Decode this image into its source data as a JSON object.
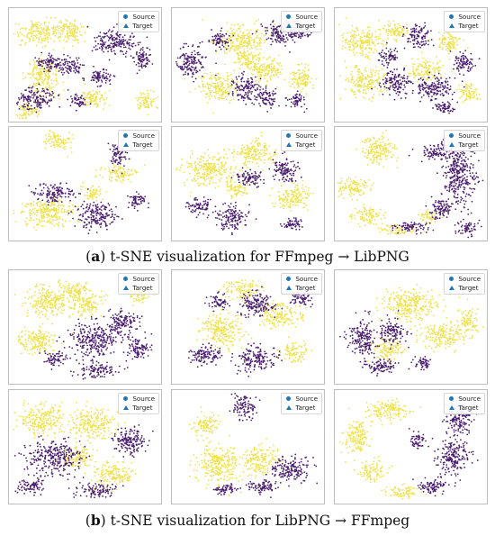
{
  "legend": {
    "source": "Source",
    "target": "Target"
  },
  "colors": {
    "source": "#efe24a",
    "target": "#4a1d6e",
    "marker": "#1f77b4"
  },
  "captions": [
    {
      "letter": "a",
      "text": " t-SNE visualization for FFmpeg → LibPNG"
    },
    {
      "letter": "b",
      "text": " t-SNE visualization for LibPNG → FFmpeg"
    }
  ],
  "chart_data": [
    {
      "type": "scatter",
      "group": "a",
      "panel": 1,
      "series": [
        {
          "name": "Source",
          "clusters": [
            [
              0.18,
              0.22,
              0.12,
              0.1
            ],
            [
              0.4,
              0.2,
              0.1,
              0.09
            ],
            [
              0.22,
              0.62,
              0.1,
              0.14
            ],
            [
              0.55,
              0.8,
              0.08,
              0.08
            ],
            [
              0.9,
              0.82,
              0.06,
              0.08
            ],
            [
              0.12,
              0.9,
              0.08,
              0.06
            ]
          ]
        },
        {
          "name": "Target",
          "clusters": [
            [
              0.7,
              0.3,
              0.13,
              0.11
            ],
            [
              0.28,
              0.48,
              0.1,
              0.07
            ],
            [
              0.42,
              0.52,
              0.06,
              0.06
            ],
            [
              0.18,
              0.8,
              0.12,
              0.09
            ],
            [
              0.6,
              0.6,
              0.08,
              0.07
            ],
            [
              0.45,
              0.82,
              0.05,
              0.05
            ],
            [
              0.88,
              0.45,
              0.05,
              0.1
            ]
          ]
        }
      ]
    },
    {
      "type": "scatter",
      "group": "a",
      "panel": 2,
      "series": [
        {
          "name": "Source",
          "clusters": [
            [
              0.45,
              0.28,
              0.14,
              0.12
            ],
            [
              0.3,
              0.7,
              0.12,
              0.11
            ],
            [
              0.62,
              0.55,
              0.11,
              0.1
            ],
            [
              0.85,
              0.62,
              0.07,
              0.1
            ],
            [
              0.5,
              0.45,
              0.08,
              0.07
            ]
          ]
        },
        {
          "name": "Target",
          "clusters": [
            [
              0.12,
              0.48,
              0.09,
              0.12
            ],
            [
              0.72,
              0.22,
              0.11,
              0.09
            ],
            [
              0.48,
              0.7,
              0.08,
              0.11
            ],
            [
              0.85,
              0.2,
              0.06,
              0.05
            ],
            [
              0.32,
              0.28,
              0.06,
              0.07
            ],
            [
              0.62,
              0.8,
              0.06,
              0.08
            ],
            [
              0.82,
              0.82,
              0.05,
              0.06
            ]
          ]
        }
      ]
    },
    {
      "type": "scatter",
      "group": "a",
      "panel": 3,
      "series": [
        {
          "name": "Source",
          "clusters": [
            [
              0.18,
              0.3,
              0.13,
              0.11
            ],
            [
              0.2,
              0.65,
              0.12,
              0.12
            ],
            [
              0.6,
              0.55,
              0.1,
              0.09
            ],
            [
              0.75,
              0.3,
              0.08,
              0.08
            ],
            [
              0.4,
              0.2,
              0.08,
              0.07
            ],
            [
              0.88,
              0.75,
              0.06,
              0.07
            ]
          ]
        },
        {
          "name": "Target",
          "clusters": [
            [
              0.55,
              0.25,
              0.08,
              0.09
            ],
            [
              0.65,
              0.7,
              0.12,
              0.1
            ],
            [
              0.4,
              0.65,
              0.09,
              0.1
            ],
            [
              0.85,
              0.48,
              0.07,
              0.08
            ],
            [
              0.72,
              0.88,
              0.06,
              0.05
            ],
            [
              0.35,
              0.42,
              0.06,
              0.06
            ]
          ]
        }
      ]
    },
    {
      "type": "scatter",
      "group": "b",
      "panel": 1,
      "series": [
        {
          "name": "Source",
          "clusters": [
            [
              0.25,
              0.28,
              0.14,
              0.12
            ],
            [
              0.18,
              0.62,
              0.12,
              0.1
            ],
            [
              0.52,
              0.3,
              0.1,
              0.09
            ],
            [
              0.42,
              0.18,
              0.1,
              0.07
            ],
            [
              0.85,
              0.22,
              0.06,
              0.06
            ]
          ]
        },
        {
          "name": "Target",
          "clusters": [
            [
              0.55,
              0.62,
              0.15,
              0.14
            ],
            [
              0.75,
              0.45,
              0.09,
              0.1
            ],
            [
              0.58,
              0.88,
              0.12,
              0.06
            ],
            [
              0.3,
              0.78,
              0.07,
              0.06
            ],
            [
              0.85,
              0.7,
              0.07,
              0.09
            ]
          ]
        }
      ]
    },
    {
      "type": "scatter",
      "group": "b",
      "panel": 2,
      "series": [
        {
          "name": "Source",
          "clusters": [
            [
              0.32,
              0.52,
              0.12,
              0.14
            ],
            [
              0.72,
              0.4,
              0.12,
              0.1
            ],
            [
              0.45,
              0.18,
              0.1,
              0.08
            ],
            [
              0.8,
              0.72,
              0.08,
              0.08
            ]
          ]
        },
        {
          "name": "Target",
          "clusters": [
            [
              0.55,
              0.78,
              0.12,
              0.1
            ],
            [
              0.22,
              0.75,
              0.1,
              0.08
            ],
            [
              0.55,
              0.3,
              0.11,
              0.1
            ],
            [
              0.85,
              0.25,
              0.07,
              0.06
            ],
            [
              0.3,
              0.28,
              0.06,
              0.06
            ]
          ]
        }
      ]
    },
    {
      "type": "scatter",
      "group": "b",
      "panel": 3,
      "series": [
        {
          "name": "Source",
          "clusters": [
            [
              0.5,
              0.3,
              0.18,
              0.12
            ],
            [
              0.7,
              0.58,
              0.14,
              0.1
            ],
            [
              0.35,
              0.7,
              0.08,
              0.1
            ],
            [
              0.88,
              0.45,
              0.06,
              0.1
            ]
          ]
        },
        {
          "name": "Target",
          "clusters": [
            [
              0.18,
              0.6,
              0.09,
              0.15
            ],
            [
              0.38,
              0.55,
              0.08,
              0.1
            ],
            [
              0.3,
              0.85,
              0.1,
              0.06
            ],
            [
              0.58,
              0.82,
              0.06,
              0.05
            ]
          ]
        }
      ]
    },
    {
      "type": "scatter",
      "group": "a",
      "panel": 4,
      "series": [
        {
          "name": "Source",
          "clusters": [
            [
              0.25,
              0.75,
              0.16,
              0.12
            ],
            [
              0.32,
              0.12,
              0.08,
              0.07
            ],
            [
              0.72,
              0.4,
              0.1,
              0.07
            ],
            [
              0.55,
              0.58,
              0.06,
              0.06
            ]
          ]
        },
        {
          "name": "Target",
          "clusters": [
            [
              0.58,
              0.78,
              0.13,
              0.1
            ],
            [
              0.72,
              0.24,
              0.05,
              0.11
            ],
            [
              0.3,
              0.58,
              0.12,
              0.08
            ],
            [
              0.85,
              0.65,
              0.06,
              0.06
            ]
          ]
        }
      ]
    },
    {
      "type": "scatter",
      "group": "a",
      "panel": 5,
      "series": [
        {
          "name": "Source",
          "clusters": [
            [
              0.25,
              0.38,
              0.15,
              0.13
            ],
            [
              0.55,
              0.22,
              0.12,
              0.1
            ],
            [
              0.8,
              0.62,
              0.1,
              0.11
            ],
            [
              0.42,
              0.55,
              0.07,
              0.06
            ]
          ]
        },
        {
          "name": "Target",
          "clusters": [
            [
              0.4,
              0.8,
              0.1,
              0.1
            ],
            [
              0.75,
              0.38,
              0.08,
              0.1
            ],
            [
              0.18,
              0.7,
              0.08,
              0.06
            ],
            [
              0.52,
              0.45,
              0.08,
              0.07
            ],
            [
              0.8,
              0.85,
              0.06,
              0.05
            ]
          ]
        }
      ]
    },
    {
      "type": "scatter",
      "group": "a",
      "panel": 6,
      "series": [
        {
          "name": "Source",
          "clusters": [
            [
              0.28,
              0.2,
              0.1,
              0.12
            ],
            [
              0.12,
              0.52,
              0.1,
              0.08
            ],
            [
              0.22,
              0.78,
              0.09,
              0.07
            ],
            [
              0.42,
              0.9,
              0.12,
              0.04
            ],
            [
              0.62,
              0.8,
              0.06,
              0.05
            ]
          ]
        },
        {
          "name": "Target",
          "clusters": [
            [
              0.82,
              0.42,
              0.1,
              0.25
            ],
            [
              0.68,
              0.22,
              0.1,
              0.07
            ],
            [
              0.7,
              0.72,
              0.07,
              0.08
            ],
            [
              0.5,
              0.88,
              0.1,
              0.05
            ],
            [
              0.88,
              0.9,
              0.06,
              0.06
            ]
          ]
        }
      ]
    },
    {
      "type": "scatter",
      "group": "b",
      "panel": 4,
      "series": [
        {
          "name": "Source",
          "clusters": [
            [
              0.22,
              0.25,
              0.14,
              0.12
            ],
            [
              0.55,
              0.3,
              0.14,
              0.12
            ],
            [
              0.7,
              0.75,
              0.12,
              0.1
            ],
            [
              0.45,
              0.6,
              0.1,
              0.08
            ]
          ]
        },
        {
          "name": "Target",
          "clusters": [
            [
              0.3,
              0.6,
              0.16,
              0.14
            ],
            [
              0.8,
              0.45,
              0.1,
              0.12
            ],
            [
              0.15,
              0.85,
              0.08,
              0.06
            ],
            [
              0.58,
              0.88,
              0.12,
              0.06
            ]
          ]
        }
      ]
    },
    {
      "type": "scatter",
      "group": "b",
      "panel": 5,
      "series": [
        {
          "name": "Source",
          "clusters": [
            [
              0.3,
              0.65,
              0.14,
              0.15
            ],
            [
              0.58,
              0.62,
              0.1,
              0.12
            ],
            [
              0.22,
              0.3,
              0.08,
              0.08
            ]
          ]
        },
        {
          "name": "Target",
          "clusters": [
            [
              0.48,
              0.15,
              0.07,
              0.1
            ],
            [
              0.78,
              0.7,
              0.12,
              0.1
            ],
            [
              0.6,
              0.85,
              0.1,
              0.05
            ],
            [
              0.35,
              0.88,
              0.08,
              0.04
            ]
          ]
        }
      ]
    },
    {
      "type": "scatter",
      "group": "b",
      "panel": 6,
      "series": [
        {
          "name": "Source",
          "clusters": [
            [
              0.35,
              0.18,
              0.13,
              0.08
            ],
            [
              0.15,
              0.42,
              0.08,
              0.14
            ],
            [
              0.25,
              0.72,
              0.08,
              0.08
            ],
            [
              0.45,
              0.9,
              0.1,
              0.05
            ]
          ]
        },
        {
          "name": "Target",
          "clusters": [
            [
              0.82,
              0.25,
              0.08,
              0.14
            ],
            [
              0.78,
              0.6,
              0.1,
              0.14
            ],
            [
              0.65,
              0.85,
              0.1,
              0.06
            ],
            [
              0.55,
              0.45,
              0.05,
              0.06
            ]
          ]
        }
      ]
    }
  ]
}
